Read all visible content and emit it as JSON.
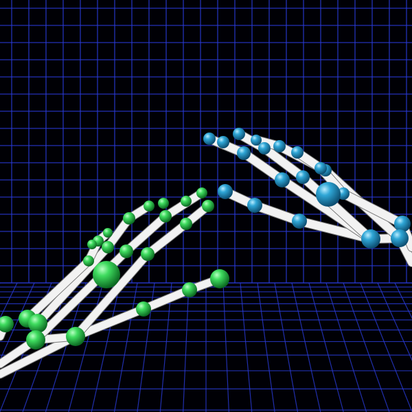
{
  "scene": {
    "background": "#000005",
    "grid_color": "#2a3bd6",
    "bone_color": "#f2f2f2",
    "left_hand_joint_color": "#2ecc52",
    "right_hand_joint_color": "#2a9ccc"
  }
}
